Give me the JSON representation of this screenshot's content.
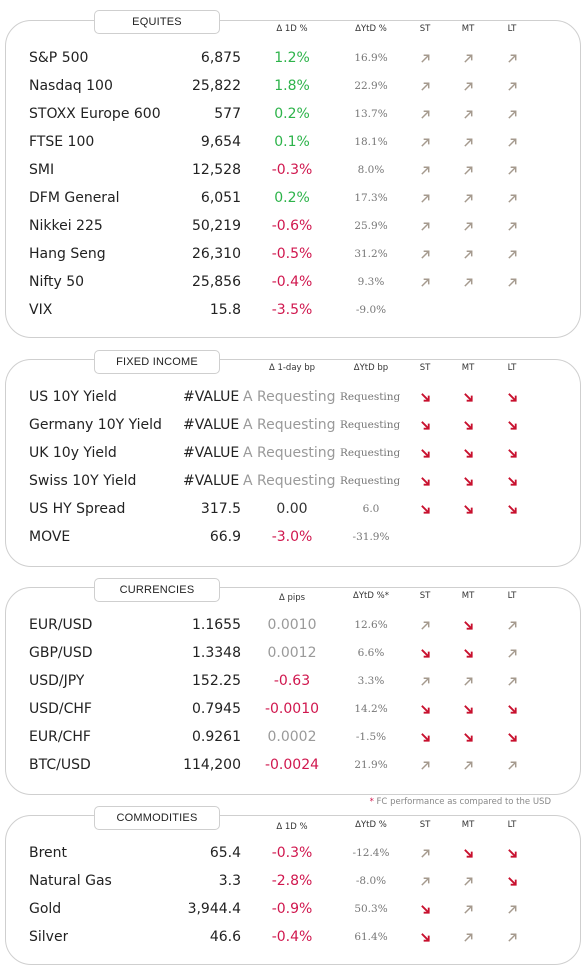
{
  "arrow_colors": {
    "up": "#a59a8e",
    "down": "#c8102e"
  },
  "equities": {
    "title": "EQUITES",
    "headers": {
      "chg": "Δ 1D %",
      "ytd": "ΔYtD %",
      "st": "ST",
      "mt": "MT",
      "lt": "LT"
    },
    "rows": [
      {
        "name": "S&P 500",
        "value": "6,875",
        "chg": "1.2%",
        "tone": "pos",
        "ytd": "16.9%",
        "st": "up-right-arrow",
        "mt": "up-right-arrow",
        "lt": "up-right-arrow"
      },
      {
        "name": "Nasdaq 100",
        "value": "25,822",
        "chg": "1.8%",
        "tone": "pos",
        "ytd": "22.9%",
        "st": "up-right-arrow",
        "mt": "up-right-arrow",
        "lt": "up-right-arrow"
      },
      {
        "name": "STOXX Europe 600",
        "value": "577",
        "chg": "0.2%",
        "tone": "pos",
        "ytd": "13.7%",
        "st": "up-right-arrow",
        "mt": "up-right-arrow",
        "lt": "up-right-arrow"
      },
      {
        "name": "FTSE 100",
        "value": "9,654",
        "chg": "0.1%",
        "tone": "pos",
        "ytd": "18.1%",
        "st": "up-right-arrow",
        "mt": "up-right-arrow",
        "lt": "up-right-arrow"
      },
      {
        "name": "SMI",
        "value": "12,528",
        "chg": "-0.3%",
        "tone": "neg",
        "ytd": "8.0%",
        "st": "up-right-arrow",
        "mt": "up-right-arrow",
        "lt": "up-right-arrow"
      },
      {
        "name": "DFM General",
        "value": "6,051",
        "chg": "0.2%",
        "tone": "pos",
        "ytd": "17.3%",
        "st": "up-right-arrow",
        "mt": "up-right-arrow",
        "lt": "up-right-arrow"
      },
      {
        "name": "Nikkei 225",
        "value": "50,219",
        "chg": "-0.6%",
        "tone": "neg",
        "ytd": "25.9%",
        "st": "up-right-arrow",
        "mt": "up-right-arrow",
        "lt": "up-right-arrow"
      },
      {
        "name": "Hang Seng",
        "value": "26,310",
        "chg": "-0.5%",
        "tone": "neg",
        "ytd": "31.2%",
        "st": "up-right-arrow",
        "mt": "up-right-arrow",
        "lt": "up-right-arrow"
      },
      {
        "name": "Nifty  50",
        "value": "25,856",
        "chg": "-0.4%",
        "tone": "neg",
        "ytd": "9.3%",
        "st": "up-right-arrow",
        "mt": "up-right-arrow",
        "lt": "up-right-arrow"
      },
      {
        "name": "VIX",
        "value": "15.8",
        "chg": "-3.5%",
        "tone": "neg",
        "ytd": "-9.0%",
        "st": "",
        "mt": "",
        "lt": ""
      }
    ]
  },
  "fixed_income": {
    "title": "FIXED INCOME",
    "headers": {
      "chg": "Δ 1-day bp",
      "ytd": "ΔYtD bp",
      "st": "ST",
      "mt": "MT",
      "lt": "LT"
    },
    "rows": [
      {
        "name": "US 10Y Yield",
        "value": "#VALUE!",
        "chg": "A Requesting D",
        "tone": "gry",
        "ytd": "Requesting",
        "st": "down-right-arrow",
        "mt": "down-right-arrow",
        "lt": "down-right-arrow",
        "clip": true
      },
      {
        "name": "Germany 10Y Yield",
        "value": "#VALUE!",
        "chg": "A Requesting D",
        "tone": "gry",
        "ytd": "Requesting",
        "st": "down-right-arrow",
        "mt": "down-right-arrow",
        "lt": "down-right-arrow",
        "clip": true
      },
      {
        "name": "UK 10y Yield",
        "value": "#VALUE!",
        "chg": "A Requesting D",
        "tone": "gry",
        "ytd": "Requesting",
        "st": "down-right-arrow",
        "mt": "down-right-arrow",
        "lt": "down-right-arrow",
        "clip": true
      },
      {
        "name": "Swiss 10Y Yield",
        "value": "#VALUE!",
        "chg": "A Requesting D",
        "tone": "gry",
        "ytd": "Requesting",
        "st": "down-right-arrow",
        "mt": "down-right-arrow",
        "lt": "down-right-arrow",
        "clip": true
      },
      {
        "name": "US HY Spread",
        "value": "317.5",
        "chg": "0.00",
        "tone": "neu",
        "ytd": "6.0",
        "st": "down-right-arrow",
        "mt": "down-right-arrow",
        "lt": "down-right-arrow"
      },
      {
        "name": "MOVE",
        "value": "66.9",
        "chg": "-3.0%",
        "tone": "neg",
        "ytd": "-31.9%",
        "st": "",
        "mt": "",
        "lt": ""
      }
    ]
  },
  "currencies": {
    "title": "CURRENCIES",
    "headers": {
      "chg": "Δ pips",
      "ytd": "ΔYtD %*",
      "st": "ST",
      "mt": "MT",
      "lt": "LT"
    },
    "rows": [
      {
        "name": "EUR/USD",
        "value": "1.1655",
        "chg": "0.0010",
        "tone": "gry",
        "ytd": "12.6%",
        "st": "up-right-arrow",
        "mt": "down-right-arrow",
        "lt": "up-right-arrow"
      },
      {
        "name": "GBP/USD",
        "value": "1.3348",
        "chg": "0.0012",
        "tone": "gry",
        "ytd": "6.6%",
        "st": "down-right-arrow",
        "mt": "down-right-arrow",
        "lt": "up-right-arrow"
      },
      {
        "name": "USD/JPY",
        "value": "152.25",
        "chg": "-0.63",
        "tone": "neg",
        "ytd": "3.3%",
        "st": "up-right-arrow",
        "mt": "up-right-arrow",
        "lt": "up-right-arrow"
      },
      {
        "name": "USD/CHF",
        "value": "0.7945",
        "chg": "-0.0010",
        "tone": "neg",
        "ytd": "14.2%",
        "st": "down-right-arrow",
        "mt": "down-right-arrow",
        "lt": "down-right-arrow"
      },
      {
        "name": "EUR/CHF",
        "value": "0.9261",
        "chg": "0.0002",
        "tone": "gry",
        "ytd": "-1.5%",
        "st": "down-right-arrow",
        "mt": "down-right-arrow",
        "lt": "down-right-arrow"
      },
      {
        "name": "BTC/USD",
        "value": "114,200",
        "chg": "-0.0024",
        "tone": "neg",
        "ytd": "21.9%",
        "st": "up-right-arrow",
        "mt": "up-right-arrow",
        "lt": "up-right-arrow"
      }
    ],
    "footnote_star": "*",
    "footnote_text": "FC performance as compared to the USD"
  },
  "commodities": {
    "title": "COMMODITIES",
    "headers": {
      "chg": "Δ 1D %",
      "ytd": "ΔYtD %",
      "st": "ST",
      "mt": "MT",
      "lt": "LT"
    },
    "rows": [
      {
        "name": "Brent",
        "value": "65.4",
        "chg": "-0.3%",
        "tone": "neg",
        "ytd": "-12.4%",
        "st": "up-right-arrow",
        "mt": "down-right-arrow",
        "lt": "down-right-arrow"
      },
      {
        "name": "Natural Gas",
        "value": "3.3",
        "chg": "-2.8%",
        "tone": "neg",
        "ytd": "-8.0%",
        "st": "up-right-arrow",
        "mt": "up-right-arrow",
        "lt": "down-right-arrow"
      },
      {
        "name": "Gold",
        "value": "3,944.4",
        "chg": "-0.9%",
        "tone": "neg",
        "ytd": "50.3%",
        "st": "down-right-arrow",
        "mt": "up-right-arrow",
        "lt": "up-right-arrow"
      },
      {
        "name": "Silver",
        "value": "46.6",
        "chg": "-0.4%",
        "tone": "neg",
        "ytd": "61.4%",
        "st": "down-right-arrow",
        "mt": "up-right-arrow",
        "lt": "up-right-arrow"
      }
    ]
  }
}
